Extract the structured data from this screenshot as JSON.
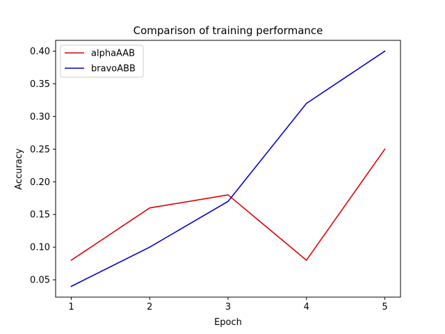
{
  "chart_data": {
    "type": "line",
    "title": "Comparison of training performance",
    "xlabel": "Epoch",
    "ylabel": "Accuracy",
    "x": [
      1,
      2,
      3,
      4,
      5
    ],
    "xlim": [
      0.8,
      5.2
    ],
    "ylim": [
      0.0235,
      0.4165
    ],
    "xticks": [
      "1",
      "2",
      "3",
      "4",
      "5"
    ],
    "yticks": [
      "0.05",
      "0.10",
      "0.15",
      "0.20",
      "0.25",
      "0.30",
      "0.35",
      "0.40"
    ],
    "grid": false,
    "legend_position": "top-left",
    "series": [
      {
        "name": "alphaAAB",
        "color": "#dd0000",
        "values": [
          0.08,
          0.16,
          0.18,
          0.08,
          0.25
        ]
      },
      {
        "name": "bravoABB",
        "color": "#0000cc",
        "values": [
          0.04,
          0.1,
          0.17,
          0.32,
          0.4
        ]
      }
    ]
  }
}
